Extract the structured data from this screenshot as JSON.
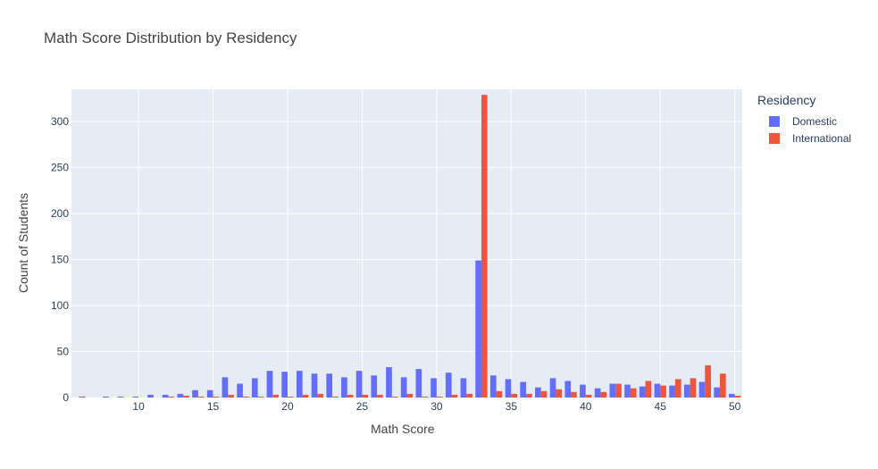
{
  "title": "Math Score Distribution by Residency",
  "legend": {
    "title": "Residency",
    "items": [
      {
        "label": "Domestic",
        "color": "#636efa"
      },
      {
        "label": "International",
        "color": "#ef553b"
      }
    ]
  },
  "chart_data": {
    "type": "bar",
    "title": "Math Score Distribution by Residency",
    "xlabel": "Math Score",
    "ylabel": "Count of Students",
    "xlim": [
      6,
      50
    ],
    "ylim": [
      0,
      335
    ],
    "xticks": [
      10,
      15,
      20,
      25,
      30,
      35,
      40,
      45,
      50
    ],
    "yticks": [
      0,
      50,
      100,
      150,
      200,
      250,
      300
    ],
    "grid": true,
    "legend_position": "right",
    "x": [
      6,
      7,
      8,
      9,
      10,
      11,
      12,
      13,
      14,
      15,
      16,
      17,
      18,
      19,
      20,
      21,
      22,
      23,
      24,
      25,
      26,
      27,
      28,
      29,
      30,
      31,
      32,
      33,
      34,
      35,
      36,
      37,
      38,
      39,
      40,
      41,
      42,
      43,
      44,
      45,
      46,
      47,
      48,
      49,
      50
    ],
    "series": [
      {
        "name": "Domestic",
        "color": "#636efa",
        "values": [
          0,
          0,
          1,
          1,
          1,
          3,
          3,
          4,
          8,
          8,
          22,
          15,
          21,
          29,
          28,
          29,
          26,
          26,
          22,
          29,
          24,
          33,
          22,
          31,
          21,
          27,
          21,
          149,
          24,
          20,
          17,
          11,
          21,
          18,
          14,
          10,
          15,
          14,
          12,
          15,
          13,
          14,
          17,
          11,
          4
        ]
      },
      {
        "name": "International",
        "color": "#ef553b",
        "values": [
          1,
          0,
          0,
          0,
          0,
          0,
          1,
          2,
          1,
          1,
          3,
          1,
          1,
          3,
          1,
          3,
          4,
          1,
          3,
          3,
          3,
          1,
          4,
          1,
          1,
          3,
          4,
          329,
          7,
          4,
          4,
          7,
          9,
          6,
          3,
          6,
          15,
          10,
          18,
          13,
          20,
          21,
          35,
          26,
          2
        ]
      }
    ]
  }
}
